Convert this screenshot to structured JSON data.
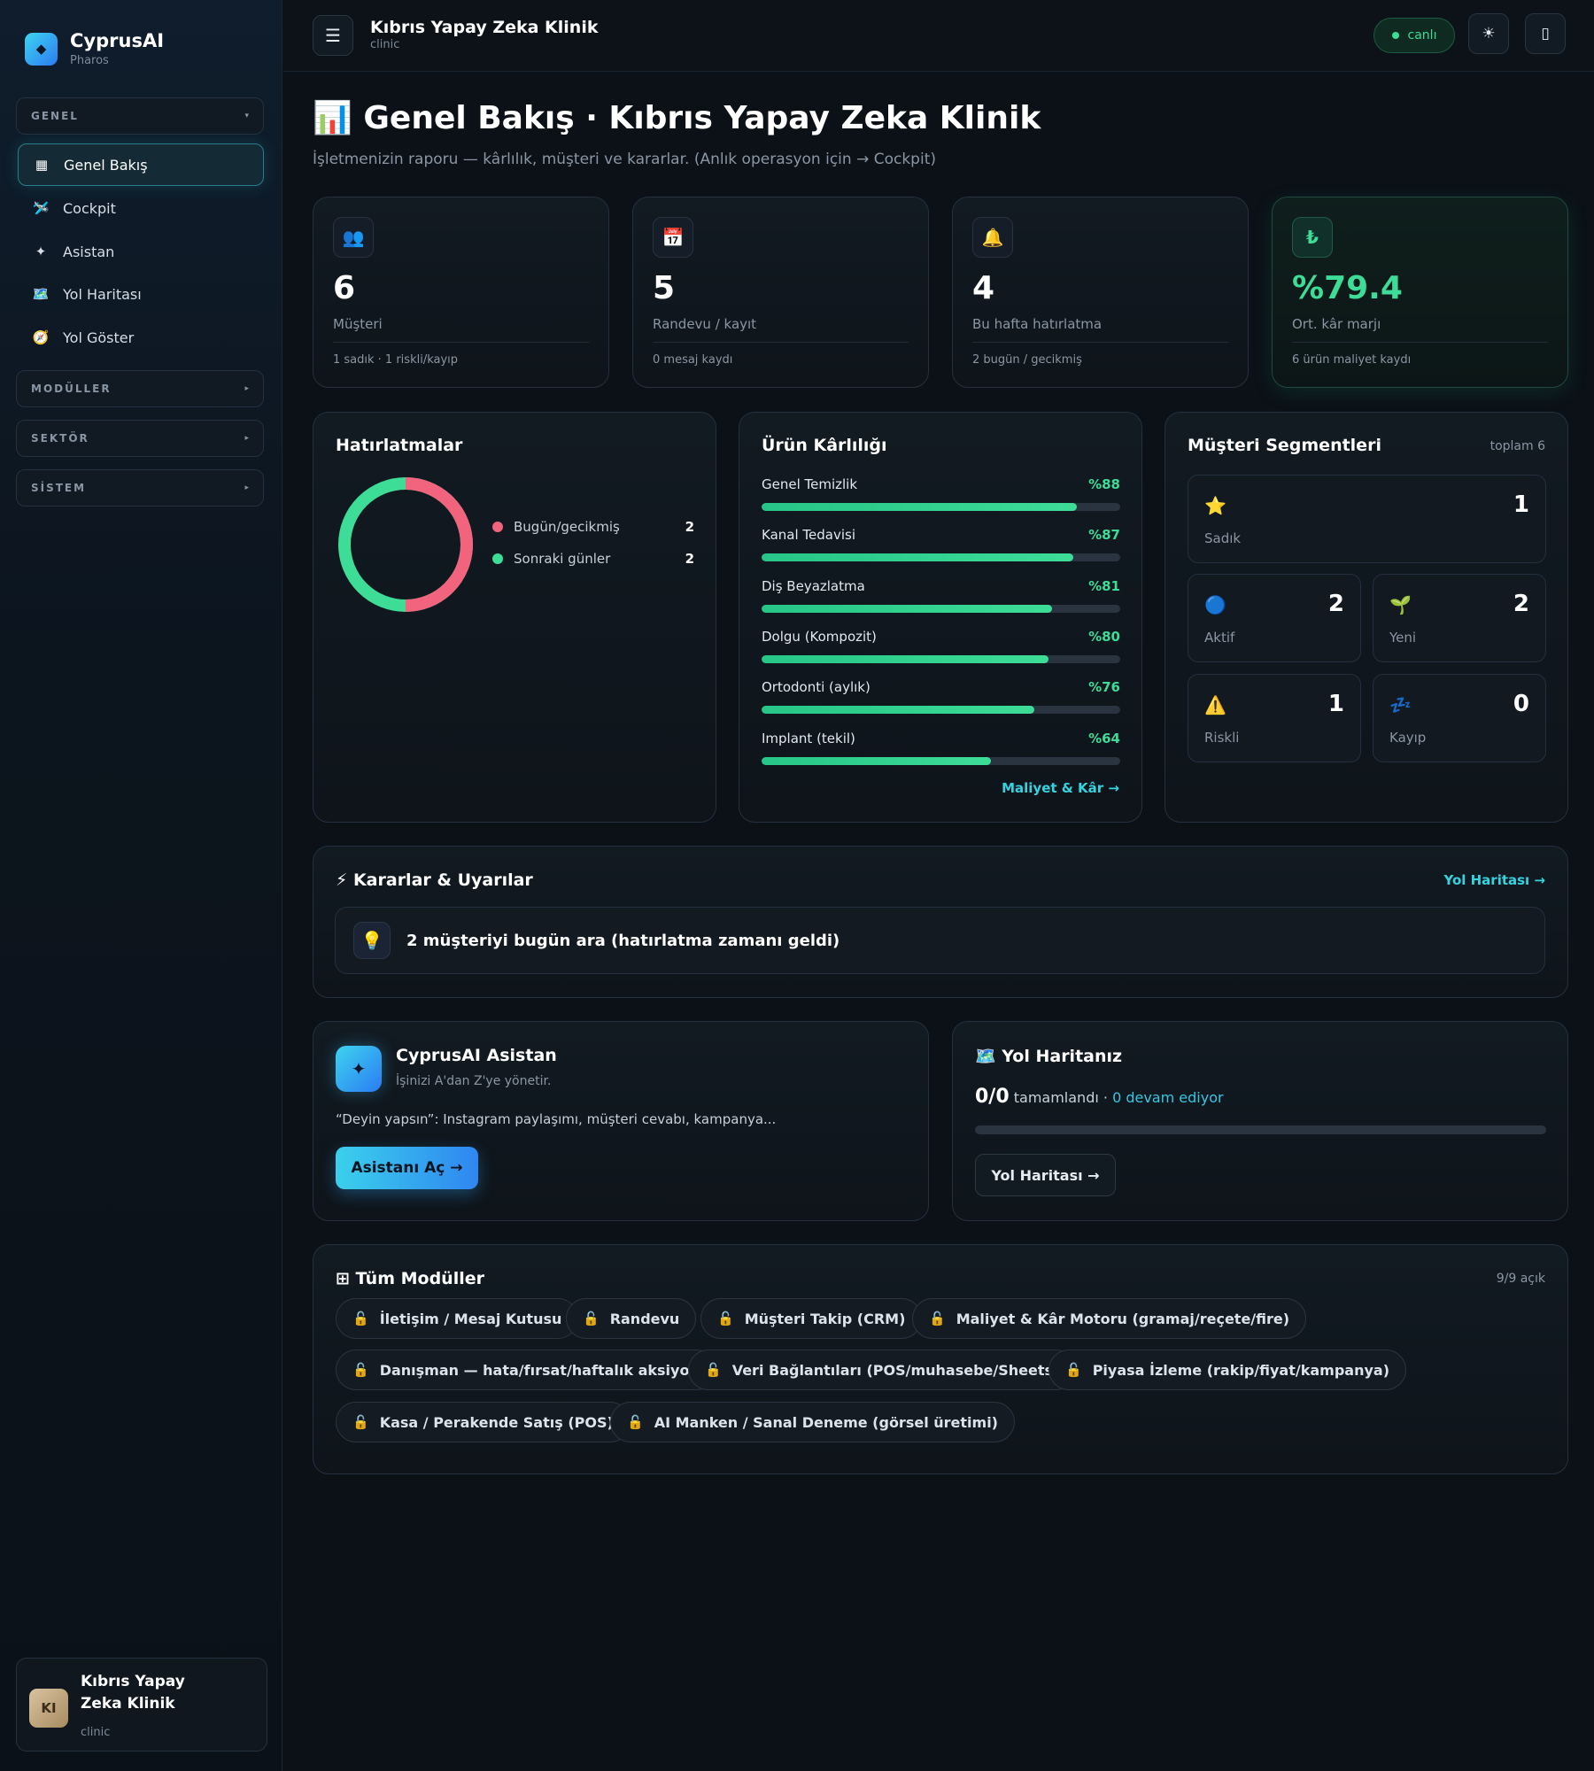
{
  "sidebar": {
    "brand": {
      "name": "CyprusAI",
      "sub": "Pharos",
      "logo_icon": "diamond-icon"
    },
    "sections": [
      {
        "label": "GENEL",
        "arrow": "▾"
      },
      {
        "label": "MODÜLLER",
        "arrow": "▸"
      },
      {
        "label": "SEKTÖR",
        "arrow": "▸"
      },
      {
        "label": "SİSTEM",
        "arrow": "▸"
      }
    ],
    "items": [
      {
        "label": "Genel Bakış",
        "icon": "▦",
        "active": true
      },
      {
        "label": "Cockpit",
        "icon": "🛩️"
      },
      {
        "label": "Asistan",
        "icon": "✦"
      },
      {
        "label": "Yol Haritası",
        "icon": "🗺️"
      },
      {
        "label": "Yol Göster",
        "icon": "🧭"
      }
    ],
    "user": {
      "initials": "KI",
      "name": "Kıbrıs Yapay Zeka Klinik",
      "role": "clinic"
    }
  },
  "topbar": {
    "menu_icon": "☰",
    "title": "Kıbrıs Yapay Zeka Klinik",
    "subtitle": "clinic",
    "live_label": "canlı",
    "theme_icon": "☀",
    "device_icon": "▯"
  },
  "header": {
    "title": "📊 Genel Bakış · Kıbrıs Yapay Zeka Klinik",
    "subtitle": "İşletmenizin raporu — kârlılık, müşteri ve kararlar. (Anlık operasyon için → Cockpit)"
  },
  "kpis": [
    {
      "icon": "👥",
      "value": "6",
      "label": "Müşteri",
      "foot": "1 sadık · 1 riskli/kayıp"
    },
    {
      "icon": "📅",
      "value": "5",
      "label": "Randevu / kayıt",
      "foot": "0 mesaj kaydı"
    },
    {
      "icon": "🔔",
      "value": "4",
      "label": "Bu hafta hatırlatma",
      "foot": "2 bugün / gecikmiş"
    },
    {
      "icon": "₺",
      "value": "%79.4",
      "label": "Ort. kâr marjı",
      "foot": "6 ürün maliyet kaydı",
      "accent": "#3ddc97"
    }
  ],
  "reminders": {
    "title": "Hatırlatmalar",
    "items": [
      {
        "label": "Bugün/gecikmiş",
        "value": 2,
        "color": "#f2637e"
      },
      {
        "label": "Sonraki günler",
        "value": 2,
        "color": "#3ddc97"
      }
    ]
  },
  "profit": {
    "title": "Ürün Kârlılığı",
    "items": [
      {
        "label": "Genel Temizlik",
        "pct": "%88",
        "fill": 0.88
      },
      {
        "label": "Kanal Tedavisi",
        "pct": "%87",
        "fill": 0.87
      },
      {
        "label": "Diş Beyazlatma",
        "pct": "%81",
        "fill": 0.81
      },
      {
        "label": "Dolgu (Kompozit)",
        "pct": "%80",
        "fill": 0.8
      },
      {
        "label": "Ortodonti (aylık)",
        "pct": "%76",
        "fill": 0.76
      },
      {
        "label": "Implant (tekil)",
        "pct": "%64",
        "fill": 0.64
      }
    ],
    "link": "Maliyet & Kâr →"
  },
  "segments": {
    "title": "Müşteri Segmentleri",
    "total": "toplam 6",
    "items": [
      {
        "label": "Sadık",
        "value": "1",
        "icon": "⭐"
      },
      {
        "label": "Aktif",
        "value": "2",
        "icon": "🔵"
      },
      {
        "label": "Yeni",
        "value": "2",
        "icon": "🌱"
      },
      {
        "label": "Riskli",
        "value": "1",
        "icon": "⚠️"
      },
      {
        "label": "Kayıp",
        "value": "0",
        "icon": "💤"
      }
    ]
  },
  "decisions": {
    "title": "⚡ Kararlar & Uyarılar",
    "link": "Yol Haritası →",
    "alert_icon": "💡",
    "alert": "2 müşteriyi bugün ara (hatırlatma zamanı geldi)"
  },
  "assistant": {
    "logo": "✦",
    "title": "CyprusAI Asistan",
    "subtitle": "İşinizi A'dan Z'ye yönetir.",
    "desc": "“Deyin yapsın”: Instagram paylaşımı, müşteri cevabı, kampanya...",
    "button": "Asistanı Aç →"
  },
  "roadmap": {
    "title": "🗺️ Yol Haritanız",
    "count": "0/0",
    "done_label": "tamamlandı ·",
    "ongoing": "0 devam ediyor",
    "progress": 0,
    "button": "Yol Haritası →"
  },
  "modules": {
    "title": "⊞ Tüm Modüller",
    "count": "9/9 açık",
    "lock_icon": "🔓",
    "items": [
      "İletişim / Mesaj Kutusu",
      "Randevu",
      "Müşteri Takip (CRM)",
      "Maliyet & Kâr Motoru (gramaj/reçete/fire)",
      "Danışman — hata/fırsat/haftalık aksiyon",
      "Veri Bağlantıları (POS/muhasebe/Sheets)",
      "Piyasa İzleme (rakip/fiyat/kampanya)",
      "Kasa / Perakende Satış (POS)",
      "AI Manken / Sanal Deneme (görsel üretimi)"
    ]
  }
}
